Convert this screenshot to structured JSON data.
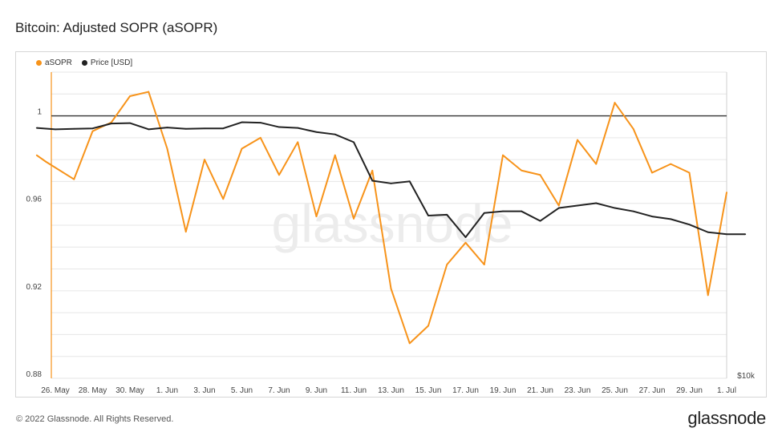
{
  "title": "Bitcoin: Adjusted SOPR (aSOPR)",
  "legend": {
    "asopr_label": "aSOPR",
    "price_label": "Price [USD]"
  },
  "watermark": "glassnode",
  "footer": {
    "copyright": "© 2022 Glassnode. All Rights Reserved.",
    "logo": "glassnode"
  },
  "colors": {
    "asopr": "#f7931a",
    "price": "#222222",
    "reference_line": "#333333",
    "grid": "#e6e6e6",
    "watermark": "#ececec"
  },
  "chart_data": {
    "type": "line",
    "x_tick_labels": [
      "26. May",
      "28. May",
      "30. May",
      "1. Jun",
      "3. Jun",
      "5. Jun",
      "7. Jun",
      "9. Jun",
      "11. Jun",
      "13. Jun",
      "15. Jun",
      "17. Jun",
      "19. Jun",
      "21. Jun",
      "23. Jun",
      "25. Jun",
      "27. Jun",
      "29. Jun",
      "1. Jul"
    ],
    "y_tick_labels": [
      "0.88",
      "0.92",
      "0.96",
      "1"
    ],
    "y_ticks": [
      0.88,
      0.92,
      0.96,
      1.0
    ],
    "ylim": [
      0.88,
      1.02
    ],
    "right_axis_label": "$10k",
    "reference_value": 1.0,
    "grid": true,
    "legend_position": "top-left",
    "series": [
      {
        "name": "aSOPR",
        "x": [
          "May 25",
          "May 25.5",
          "May 27",
          "May 28",
          "May 29",
          "May 30",
          "May 31",
          "Jun 1",
          "Jun 2",
          "Jun 3",
          "Jun 4",
          "Jun 5",
          "Jun 6",
          "Jun 7",
          "Jun 8",
          "Jun 9",
          "Jun 10",
          "Jun 11",
          "Jun 12",
          "Jun 13",
          "Jun 14",
          "Jun 15",
          "Jun 16",
          "Jun 17",
          "Jun 18",
          "Jun 19",
          "Jun 20",
          "Jun 21",
          "Jun 22",
          "Jun 23",
          "Jun 24",
          "Jun 25",
          "Jun 26",
          "Jun 27",
          "Jun 28",
          "Jun 29",
          "Jun 30",
          "Jul 1"
        ],
        "values": [
          0.982,
          0.979,
          0.971,
          0.993,
          0.997,
          1.009,
          1.011,
          0.985,
          0.947,
          0.98,
          0.962,
          0.985,
          0.99,
          0.973,
          0.988,
          0.954,
          0.982,
          0.953,
          0.975,
          0.921,
          0.896,
          0.904,
          0.932,
          0.942,
          0.932,
          0.982,
          0.975,
          0.973,
          0.959,
          0.989,
          0.978,
          1.006,
          0.994,
          0.974,
          0.978,
          0.974,
          0.918,
          0.965
        ]
      },
      {
        "name": "Price [USD]",
        "axis": "right",
        "x": [
          "May 25",
          "May 26",
          "May 27",
          "May 28",
          "May 29",
          "May 30",
          "May 31",
          "Jun 1",
          "Jun 2",
          "Jun 3",
          "Jun 4",
          "Jun 5",
          "Jun 6",
          "Jun 7",
          "Jun 8",
          "Jun 9",
          "Jun 10",
          "Jun 11",
          "Jun 12",
          "Jun 13",
          "Jun 14",
          "Jun 15",
          "Jun 16",
          "Jun 17",
          "Jun 18",
          "Jun 19",
          "Jun 20",
          "Jun 21",
          "Jun 22",
          "Jun 23",
          "Jun 24",
          "Jun 25",
          "Jun 26",
          "Jun 27",
          "Jun 28",
          "Jun 29",
          "Jun 30",
          "Jul 1",
          "Jul 2"
        ],
        "values": [
          29600,
          29300,
          29400,
          29500,
          30600,
          30700,
          29300,
          29700,
          29400,
          29500,
          29500,
          30900,
          30800,
          29800,
          29600,
          28700,
          28200,
          26600,
          19900,
          19500,
          19800,
          15300,
          15400,
          13000,
          15600,
          15800,
          15800,
          14700,
          16200,
          16500,
          16800,
          16200,
          15800,
          15200,
          14900,
          14300,
          13500,
          13300,
          13300
        ]
      }
    ]
  }
}
